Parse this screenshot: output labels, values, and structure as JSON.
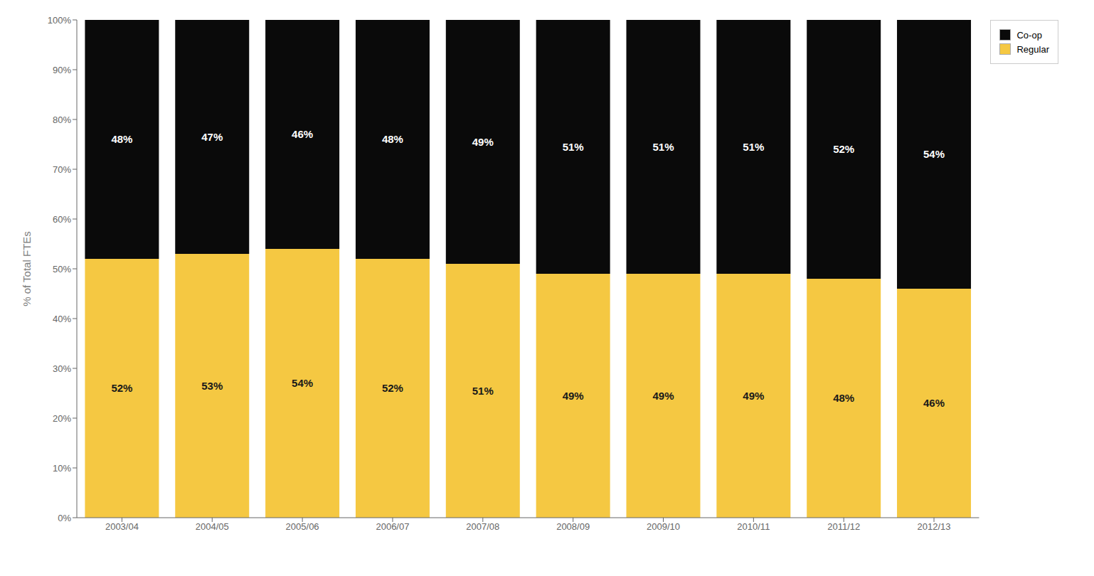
{
  "chart_data": {
    "type": "bar",
    "stacked": true,
    "data_labels": true,
    "grid": false,
    "legend": "right",
    "categories": [
      "2003/04",
      "2004/05",
      "2005/06",
      "2006/07",
      "2007/08",
      "2008/09",
      "2009/10",
      "2010/11",
      "2011/12",
      "2012/13"
    ],
    "series": [
      {
        "name": "Regular",
        "color": "#F5C842",
        "values": [
          52,
          53,
          54,
          52,
          51,
          49,
          49,
          49,
          48,
          46
        ],
        "value_labels": [
          "52%",
          "53%",
          "54%",
          "52%",
          "51%",
          "49%",
          "49%",
          "49%",
          "48%",
          "46%"
        ]
      },
      {
        "name": "Co-op",
        "color": "#0A0A0A",
        "values": [
          48,
          47,
          46,
          48,
          49,
          51,
          51,
          51,
          52,
          54
        ],
        "value_labels": [
          "48%",
          "47%",
          "46%",
          "48%",
          "49%",
          "51%",
          "51%",
          "51%",
          "52%",
          "54%"
        ]
      }
    ],
    "ylabel": "% of Total FTEs",
    "ylim": [
      0,
      100
    ],
    "yticks": [
      {
        "value": 0,
        "label": "0%"
      },
      {
        "value": 10,
        "label": "10%"
      },
      {
        "value": 20,
        "label": "20%"
      },
      {
        "value": 30,
        "label": "30%"
      },
      {
        "value": 40,
        "label": "40%"
      },
      {
        "value": 50,
        "label": "50%"
      },
      {
        "value": 60,
        "label": "60%"
      },
      {
        "value": 70,
        "label": "70%"
      },
      {
        "value": 80,
        "label": "80%"
      },
      {
        "value": 90,
        "label": "90%"
      },
      {
        "value": 100,
        "label": "100%"
      }
    ]
  }
}
